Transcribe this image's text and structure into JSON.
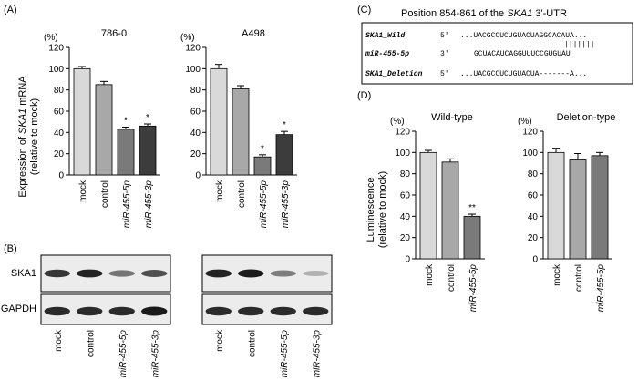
{
  "panel_letters": {
    "A": "(A)",
    "B": "(B)",
    "C": "(C)",
    "D": "(D)"
  },
  "colors": {
    "mock": "#d9d9d9",
    "control": "#a8a8a8",
    "mir_5p": "#7a7a7a",
    "mir_3p": "#3c3c3c",
    "blot_bg": "#ececec",
    "band": "#1a1a1a"
  },
  "panel_a": {
    "ylabel_line1": "Expression of SKA1 mRNA",
    "ylabel_prefix": "Expression of ",
    "ylabel_gene": "SKA1",
    "ylabel_suffix": " mRNA",
    "ylabel_line2": "(relative to mock)"
  },
  "panel_b": {
    "labels": [
      "SKA1",
      "GAPDH"
    ],
    "lanes": [
      "mock",
      "control",
      "miR-455-5p",
      "miR-455-3p"
    ],
    "ska1_left": [
      0.85,
      0.95,
      0.5,
      0.7
    ],
    "ska1_right": [
      0.95,
      1.0,
      0.45,
      0.15
    ],
    "gapdh_left": [
      0.9,
      0.9,
      0.9,
      1.0
    ],
    "gapdh_right": [
      0.9,
      0.9,
      0.9,
      0.9
    ]
  },
  "panel_c": {
    "title_prefix": "Position  854-861 of the ",
    "title_gene": "SKA1",
    "title_suffix": " 3'-UTR",
    "rows": [
      {
        "label": "SKA1_Wild",
        "end": "5'",
        "seq": "...UACGCCUCUGUACUAGGCACAUA..."
      },
      {
        "label": "",
        "end": "",
        "seq": "|||||||"
      },
      {
        "label": "miR-455-5p",
        "end": "3'",
        "seq": "GCUACAUCAGGUUUCCGUGUAU"
      },
      {
        "label": "SKA1_Deletion",
        "end": "5'",
        "seq": "...UACGCCUCUGUACUA-------A..."
      }
    ]
  },
  "panel_d": {
    "ylabel_line1": "Luminescence",
    "ylabel_line2": "(relative to mock)"
  },
  "chart_data": [
    {
      "type": "bar",
      "title": "786-0",
      "unit_label": "(%)",
      "categories": [
        "mock",
        "control",
        "miR-455-5p",
        "miR-455-3p"
      ],
      "values": [
        100,
        85,
        43,
        46
      ],
      "errors": [
        2,
        3,
        2,
        2
      ],
      "annotations": [
        "",
        "",
        "*",
        "*"
      ],
      "ylim": [
        0,
        120
      ],
      "yticks": [
        0,
        20,
        40,
        60,
        80,
        100,
        120
      ]
    },
    {
      "type": "bar",
      "title": "A498",
      "unit_label": "(%)",
      "categories": [
        "mock",
        "control",
        "miR-455-5p",
        "miR-455-3p"
      ],
      "values": [
        100,
        81,
        17,
        38
      ],
      "errors": [
        4,
        3,
        2,
        3
      ],
      "annotations": [
        "",
        "",
        "*",
        "*"
      ],
      "ylim": [
        0,
        120
      ],
      "yticks": [
        0,
        20,
        40,
        60,
        80,
        100,
        120
      ]
    },
    {
      "type": "bar",
      "title": "Wild-type",
      "unit_label": "(%)",
      "categories": [
        "mock",
        "control",
        "miR-455-5p"
      ],
      "values": [
        100,
        91,
        40
      ],
      "errors": [
        2,
        3,
        2
      ],
      "annotations": [
        "",
        "",
        "**"
      ],
      "ylim": [
        0,
        120
      ],
      "yticks": [
        0,
        20,
        40,
        60,
        80,
        100,
        120
      ]
    },
    {
      "type": "bar",
      "title": "Deletion-type",
      "unit_label": "(%)",
      "categories": [
        "mock",
        "control",
        "miR-455-5p"
      ],
      "values": [
        100,
        93,
        97
      ],
      "errors": [
        4,
        6,
        3
      ],
      "annotations": [
        "",
        "",
        ""
      ],
      "ylim": [
        0,
        120
      ],
      "yticks": [
        0,
        20,
        40,
        60,
        80,
        100,
        120
      ]
    }
  ]
}
